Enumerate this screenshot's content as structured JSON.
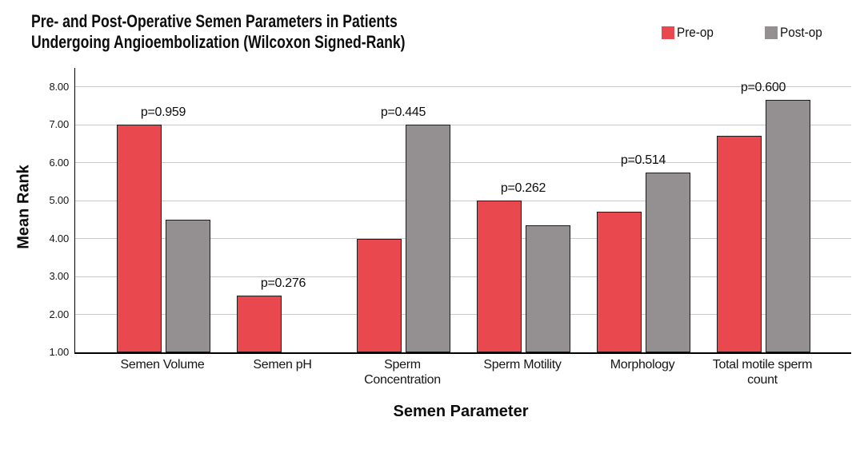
{
  "header": {
    "title_line1": "Pre- and Post-Operative Semen Parameters in Patients",
    "title_line2": "Undergoing Angioembolization (Wilcoxon Signed-Rank)"
  },
  "legend": {
    "items": [
      {
        "label": "Pre-op",
        "color": "#E8484E"
      },
      {
        "label": "Post-op",
        "color": "#949091"
      }
    ]
  },
  "chart_data": {
    "type": "bar",
    "title": "Pre- and Post-Operative Semen Parameters in Patients Undergoing Angioembolization (Wilcoxon Signed-Rank)",
    "xlabel": "Semen Parameter",
    "ylabel": "Mean Rank",
    "ylim": [
      1.0,
      8.5
    ],
    "ytick_values": [
      1,
      2,
      3,
      4,
      5,
      6,
      7,
      8
    ],
    "ytick_labels": [
      "1.00",
      "2.00",
      "3.00",
      "4.00",
      "5.00",
      "6.00",
      "7.00",
      "8.00"
    ],
    "grid": true,
    "legend_position": "top-right",
    "categories": [
      "Semen Volume",
      "Semen pH",
      "Sperm Concentration",
      "Sperm Motility",
      "Morphology",
      "Total motile sperm count"
    ],
    "series": [
      {
        "name": "Pre-op",
        "color": "#E8484E",
        "values": [
          7.0,
          2.5,
          4.0,
          5.0,
          4.7,
          6.7
        ]
      },
      {
        "name": "Post-op",
        "color": "#949091",
        "values": [
          4.5,
          null,
          7.0,
          4.35,
          5.75,
          7.65
        ]
      }
    ],
    "p_value_labels": [
      "p=0.959",
      "p=0.276",
      "p=0.445",
      "p=0.262",
      "p=0.514",
      "p=0.600"
    ],
    "annotation_note": "p-value shown above each parameter group"
  }
}
